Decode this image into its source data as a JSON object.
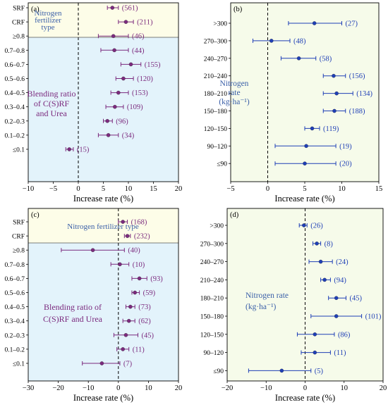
{
  "chart_data": [
    {
      "panel": "(a)",
      "type": "scatter",
      "xlabel": "Increase rate (%)",
      "xlim": [
        -10,
        20
      ],
      "xticks": [
        -10,
        -5,
        0,
        5,
        10,
        15,
        20
      ],
      "categories": [
        "SRF",
        "CRF",
        "≥0.8",
        "0.7–0.8",
        "0.6–0.7",
        "0.5–0.6",
        "0.4–0.5",
        "0.3–0.4",
        "0.2–0.3",
        "0.1–0.2",
        "≤0.1"
      ],
      "values": [
        6.8,
        9.5,
        7.0,
        7.2,
        10.5,
        9.0,
        8.0,
        7.3,
        5.8,
        6.0,
        -1.8
      ],
      "ci_low": [
        5.8,
        8.0,
        4.0,
        4.5,
        8.5,
        7.5,
        6.5,
        5.5,
        5.0,
        4.0,
        -2.5
      ],
      "ci_high": [
        8.0,
        11.0,
        10.0,
        10.0,
        12.5,
        11.0,
        10.0,
        9.0,
        6.8,
        8.0,
        -1.0
      ],
      "n": [
        "(561)",
        "(211)",
        "(46)",
        "(44)",
        "(155)",
        "(120)",
        "(153)",
        "(109)",
        "(96)",
        "(34)",
        "(15)"
      ],
      "group_label_top": "Nitrogen fertilizer type",
      "group_label_bottom": "Blending ratio of C(S)RF and Urea",
      "top_group_size": 2
    },
    {
      "panel": "(b)",
      "type": "scatter",
      "xlabel": "Increase rate (%)",
      "xlim": [
        -5,
        15
      ],
      "xticks": [
        -5,
        0,
        5,
        10,
        15
      ],
      "categories": [
        ">300",
        "270–300",
        "240–270",
        "210–240",
        "180–210",
        "150–180",
        "120–150",
        "90–120",
        "≤90"
      ],
      "values": [
        6.3,
        0.5,
        4.2,
        8.9,
        9.3,
        9.0,
        6.0,
        5.2,
        5.0
      ],
      "ci_low": [
        2.8,
        -2.0,
        1.8,
        7.5,
        7.5,
        7.5,
        5.0,
        1.0,
        1.0
      ],
      "ci_high": [
        10.0,
        3.0,
        6.5,
        10.5,
        11.5,
        10.5,
        7.0,
        9.2,
        9.2
      ],
      "n": [
        "(27)",
        "(48)",
        "(58)",
        "(156)",
        "(134)",
        "(188)",
        "(119)",
        "(19)",
        "(20)"
      ],
      "group_label": "Nitrogen rate (kg·ha⁻¹)"
    },
    {
      "panel": "(c)",
      "type": "scatter",
      "xlabel": "Increase rate (%)",
      "xlim": [
        -30,
        20
      ],
      "xticks": [
        -30,
        -20,
        -10,
        0,
        10,
        20
      ],
      "categories": [
        "SRF",
        "CRF",
        "≥0.8",
        "0.7–0.8",
        "0.6–0.7",
        "0.5–0.6",
        "0.4–0.5",
        "0.3–0.4",
        "0.2–0.3",
        "0.1–0.2",
        "≤0.1"
      ],
      "values": [
        1.5,
        3.0,
        -8.5,
        0.5,
        7.0,
        5.5,
        4.0,
        3.5,
        2.5,
        1.5,
        -5.5
      ],
      "ci_low": [
        0.0,
        2.0,
        -19.0,
        -2.5,
        4.5,
        4.5,
        2.5,
        1.5,
        -1.5,
        -0.5,
        -12.0
      ],
      "ci_high": [
        3.0,
        4.0,
        2.0,
        3.5,
        9.5,
        7.0,
        5.5,
        5.5,
        6.5,
        3.5,
        0.5
      ],
      "n": [
        "(168)",
        "(232)",
        "(40)",
        "(10)",
        "(93)",
        "(59)",
        "(73)",
        "(62)",
        "(45)",
        "(11)",
        "(7)"
      ],
      "group_label_top": "Nitrogen fertilizer type",
      "group_label_bottom": "Blending ratio of C(S)RF and Urea",
      "top_group_size": 2
    },
    {
      "panel": "(d)",
      "type": "scatter",
      "xlabel": "Increase rate (%)",
      "xlim": [
        -20,
        20
      ],
      "xticks": [
        -20,
        -10,
        0,
        10,
        20
      ],
      "categories": [
        ">300",
        "270–300",
        "240–270",
        "210–240",
        "180–210",
        "150–180",
        "120–150",
        "90–120",
        "≤90"
      ],
      "values": [
        -0.3,
        3.0,
        4.0,
        5.0,
        8.0,
        8.0,
        2.5,
        2.5,
        -6.0
      ],
      "ci_low": [
        -1.5,
        2.0,
        1.0,
        4.0,
        6.0,
        1.5,
        -2.0,
        -1.0,
        -14.5
      ],
      "ci_high": [
        0.5,
        4.0,
        7.0,
        6.5,
        10.5,
        14.5,
        7.5,
        6.5,
        1.5
      ],
      "n": [
        "(26)",
        "(8)",
        "(24)",
        "(94)",
        "(45)",
        "(101)",
        "(86)",
        "(11)",
        "(5)"
      ],
      "group_label": "Nitrogen rate (kg·ha⁻¹)"
    }
  ],
  "colors": {
    "top_group_bg": "#fdfde8",
    "bottom_group_bg": "#e3f3fb",
    "single_bg": "#f6fbea",
    "purple": "#7b2a7e",
    "blue": "#1f3fb6",
    "group_text_blue": "#3a5fa8",
    "group_text_purple": "#7b2a7e"
  }
}
